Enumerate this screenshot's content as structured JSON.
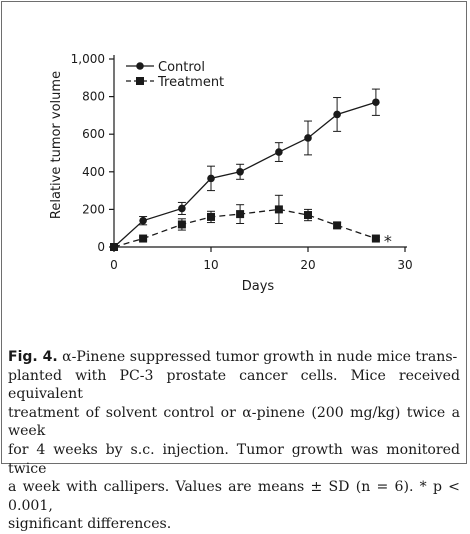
{
  "chart_data": {
    "type": "line",
    "title": "",
    "xlabel": "Days",
    "ylabel": "Relative tumor volume",
    "xlim": [
      0,
      30
    ],
    "ylim": [
      0,
      1000
    ],
    "xticks": [
      "0",
      "10",
      "20",
      "30"
    ],
    "yticks": [
      "0",
      "200",
      "400",
      "600",
      "800",
      "1,000"
    ],
    "grid": false,
    "legend_position": "top-left",
    "series": [
      {
        "name": "Control",
        "marker": "circle",
        "line_style": "solid",
        "color": "#1a1a1a",
        "x": [
          0,
          3,
          7,
          10,
          13,
          17,
          20,
          23,
          27
        ],
        "y": [
          0,
          140,
          205,
          365,
          400,
          505,
          580,
          705,
          770
        ],
        "error": [
          0,
          22,
          32,
          65,
          40,
          50,
          90,
          90,
          70
        ]
      },
      {
        "name": "Treatment",
        "marker": "square",
        "line_style": "dashed",
        "color": "#1a1a1a",
        "x": [
          0,
          3,
          7,
          10,
          13,
          17,
          20,
          23,
          27
        ],
        "y": [
          0,
          45,
          120,
          160,
          175,
          200,
          170,
          115,
          45
        ],
        "error": [
          0,
          8,
          30,
          30,
          50,
          75,
          30,
          15,
          8
        ]
      }
    ],
    "annotations": [
      {
        "text": "*",
        "x": 27,
        "y": 45
      }
    ]
  },
  "caption": {
    "label": "Fig. 4.",
    "text": "α-Pinene suppressed tumor growth in nude mice trans-\nplanted with PC-3 prostate cancer cells. Mice received equivalent\ntreatment of solvent control or α-pinene (200 mg/kg) twice a week\nfor 4 weeks by s.c. injection. Tumor growth was monitored twice\na week with callipers. Values are means ± SD (n = 6). * p < 0.001,\nsignificant differences."
  }
}
